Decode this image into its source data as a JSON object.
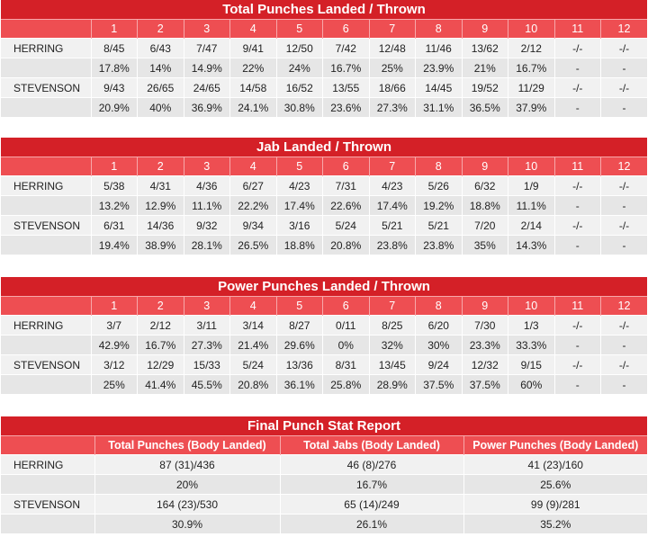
{
  "rounds": [
    "1",
    "2",
    "3",
    "4",
    "5",
    "6",
    "7",
    "8",
    "9",
    "10",
    "11",
    "12"
  ],
  "sections": [
    {
      "title": "Total Punches Landed / Thrown",
      "rows": [
        {
          "name": "HERRING",
          "cells": [
            "8/45",
            "6/43",
            "7/47",
            "9/41",
            "12/50",
            "7/42",
            "12/48",
            "11/46",
            "13/62",
            "2/12",
            "-/-",
            "-/-"
          ]
        },
        {
          "name": "",
          "cells": [
            "17.8%",
            "14%",
            "14.9%",
            "22%",
            "24%",
            "16.7%",
            "25%",
            "23.9%",
            "21%",
            "16.7%",
            "-",
            "-"
          ]
        },
        {
          "name": "STEVENSON",
          "cells": [
            "9/43",
            "26/65",
            "24/65",
            "14/58",
            "16/52",
            "13/55",
            "18/66",
            "14/45",
            "19/52",
            "11/29",
            "-/-",
            "-/-"
          ]
        },
        {
          "name": "",
          "cells": [
            "20.9%",
            "40%",
            "36.9%",
            "24.1%",
            "30.8%",
            "23.6%",
            "27.3%",
            "31.1%",
            "36.5%",
            "37.9%",
            "-",
            "-"
          ]
        }
      ]
    },
    {
      "title": "Jab Landed / Thrown",
      "rows": [
        {
          "name": "HERRING",
          "cells": [
            "5/38",
            "4/31",
            "4/36",
            "6/27",
            "4/23",
            "7/31",
            "4/23",
            "5/26",
            "6/32",
            "1/9",
            "-/-",
            "-/-"
          ]
        },
        {
          "name": "",
          "cells": [
            "13.2%",
            "12.9%",
            "11.1%",
            "22.2%",
            "17.4%",
            "22.6%",
            "17.4%",
            "19.2%",
            "18.8%",
            "11.1%",
            "-",
            "-"
          ]
        },
        {
          "name": "STEVENSON",
          "cells": [
            "6/31",
            "14/36",
            "9/32",
            "9/34",
            "3/16",
            "5/24",
            "5/21",
            "5/21",
            "7/20",
            "2/14",
            "-/-",
            "-/-"
          ]
        },
        {
          "name": "",
          "cells": [
            "19.4%",
            "38.9%",
            "28.1%",
            "26.5%",
            "18.8%",
            "20.8%",
            "23.8%",
            "23.8%",
            "35%",
            "14.3%",
            "-",
            "-"
          ]
        }
      ]
    },
    {
      "title": "Power Punches Landed / Thrown",
      "rows": [
        {
          "name": "HERRING",
          "cells": [
            "3/7",
            "2/12",
            "3/11",
            "3/14",
            "8/27",
            "0/11",
            "8/25",
            "6/20",
            "7/30",
            "1/3",
            "-/-",
            "-/-"
          ]
        },
        {
          "name": "",
          "cells": [
            "42.9%",
            "16.7%",
            "27.3%",
            "21.4%",
            "29.6%",
            "0%",
            "32%",
            "30%",
            "23.3%",
            "33.3%",
            "-",
            "-"
          ]
        },
        {
          "name": "STEVENSON",
          "cells": [
            "3/12",
            "12/29",
            "15/33",
            "5/24",
            "13/36",
            "8/31",
            "13/45",
            "9/24",
            "12/32",
            "9/15",
            "-/-",
            "-/-"
          ]
        },
        {
          "name": "",
          "cells": [
            "25%",
            "41.4%",
            "45.5%",
            "20.8%",
            "36.1%",
            "25.8%",
            "28.9%",
            "37.5%",
            "37.5%",
            "60%",
            "-",
            "-"
          ]
        }
      ]
    }
  ],
  "final": {
    "title": "Final Punch Stat Report",
    "headers": [
      "Total Punches (Body Landed)",
      "Total Jabs (Body Landed)",
      "Power Punches (Body Landed)"
    ],
    "rows": [
      {
        "name": "HERRING",
        "cells": [
          "87 (31)/436",
          "46 (8)/276",
          "41 (23)/160"
        ]
      },
      {
        "name": "",
        "cells": [
          "20%",
          "16.7%",
          "25.6%"
        ]
      },
      {
        "name": "STEVENSON",
        "cells": [
          "164 (23)/530",
          "65 (14)/249",
          "99 (9)/281"
        ]
      },
      {
        "name": "",
        "cells": [
          "30.9%",
          "26.1%",
          "35.2%"
        ]
      }
    ]
  }
}
